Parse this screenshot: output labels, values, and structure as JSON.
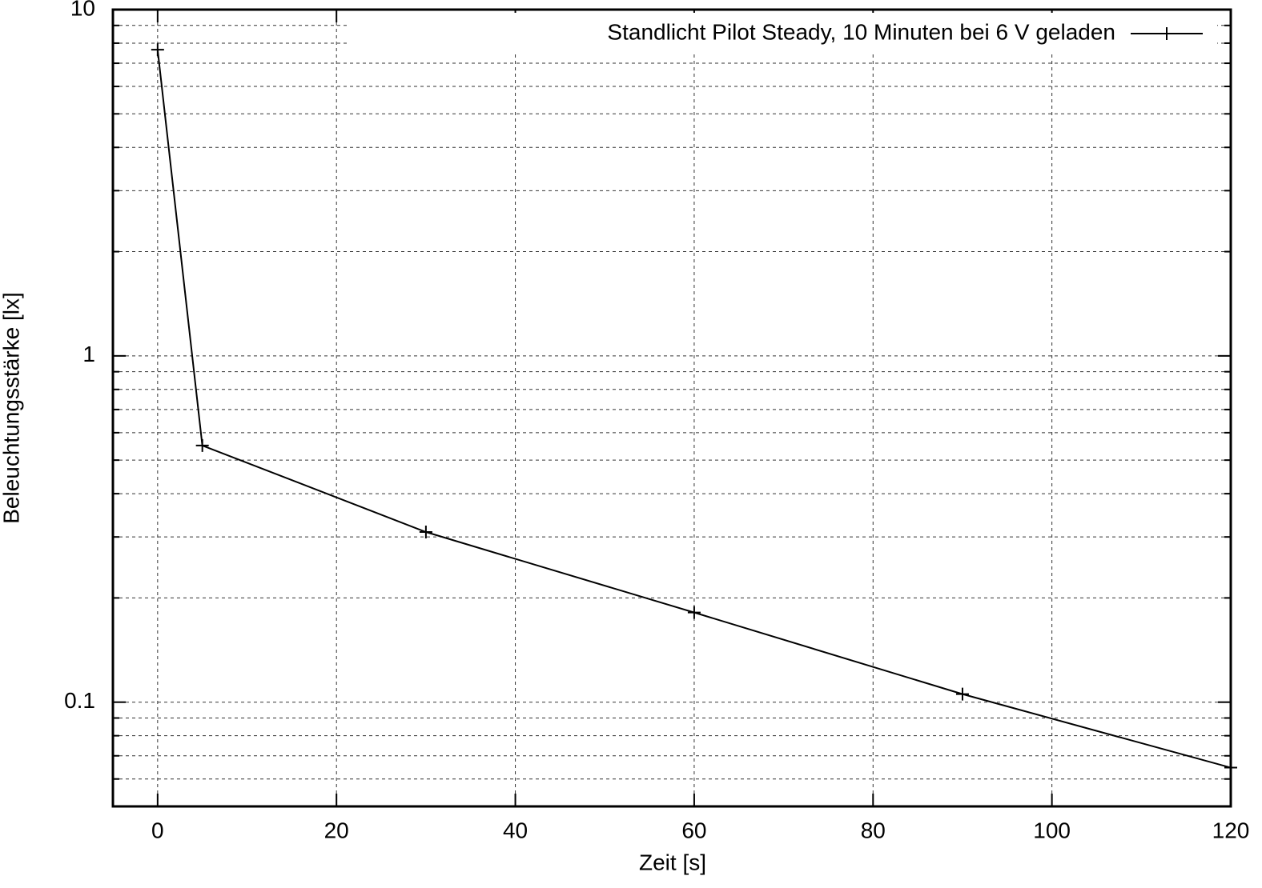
{
  "chart_data": {
    "type": "line",
    "xlabel": "Zeit [s]",
    "ylabel": "Beleuchtungsstärke [lx]",
    "x": [
      0,
      5,
      30,
      60,
      90,
      120
    ],
    "series": [
      {
        "name": "Standlicht Pilot Steady, 10 Minuten bei 6 V geladen",
        "color": "#000000",
        "values": [
          7.66,
          0.551,
          0.31,
          0.1815,
          0.1055,
          0.0647
        ]
      }
    ],
    "xlim": [
      -5,
      120
    ],
    "xticks": [
      0,
      20,
      40,
      60,
      80,
      100,
      120
    ],
    "ylim": [
      0.05,
      10
    ],
    "yticks": [
      0.1,
      1,
      10
    ],
    "yminorticks": [
      0.06,
      0.07,
      0.08,
      0.09,
      0.2,
      0.3,
      0.4,
      0.5,
      0.6,
      0.7,
      0.8,
      0.9,
      2,
      3,
      4,
      5,
      6,
      7,
      8,
      9
    ],
    "ylog": true,
    "grid": true,
    "legend": "top-right"
  }
}
